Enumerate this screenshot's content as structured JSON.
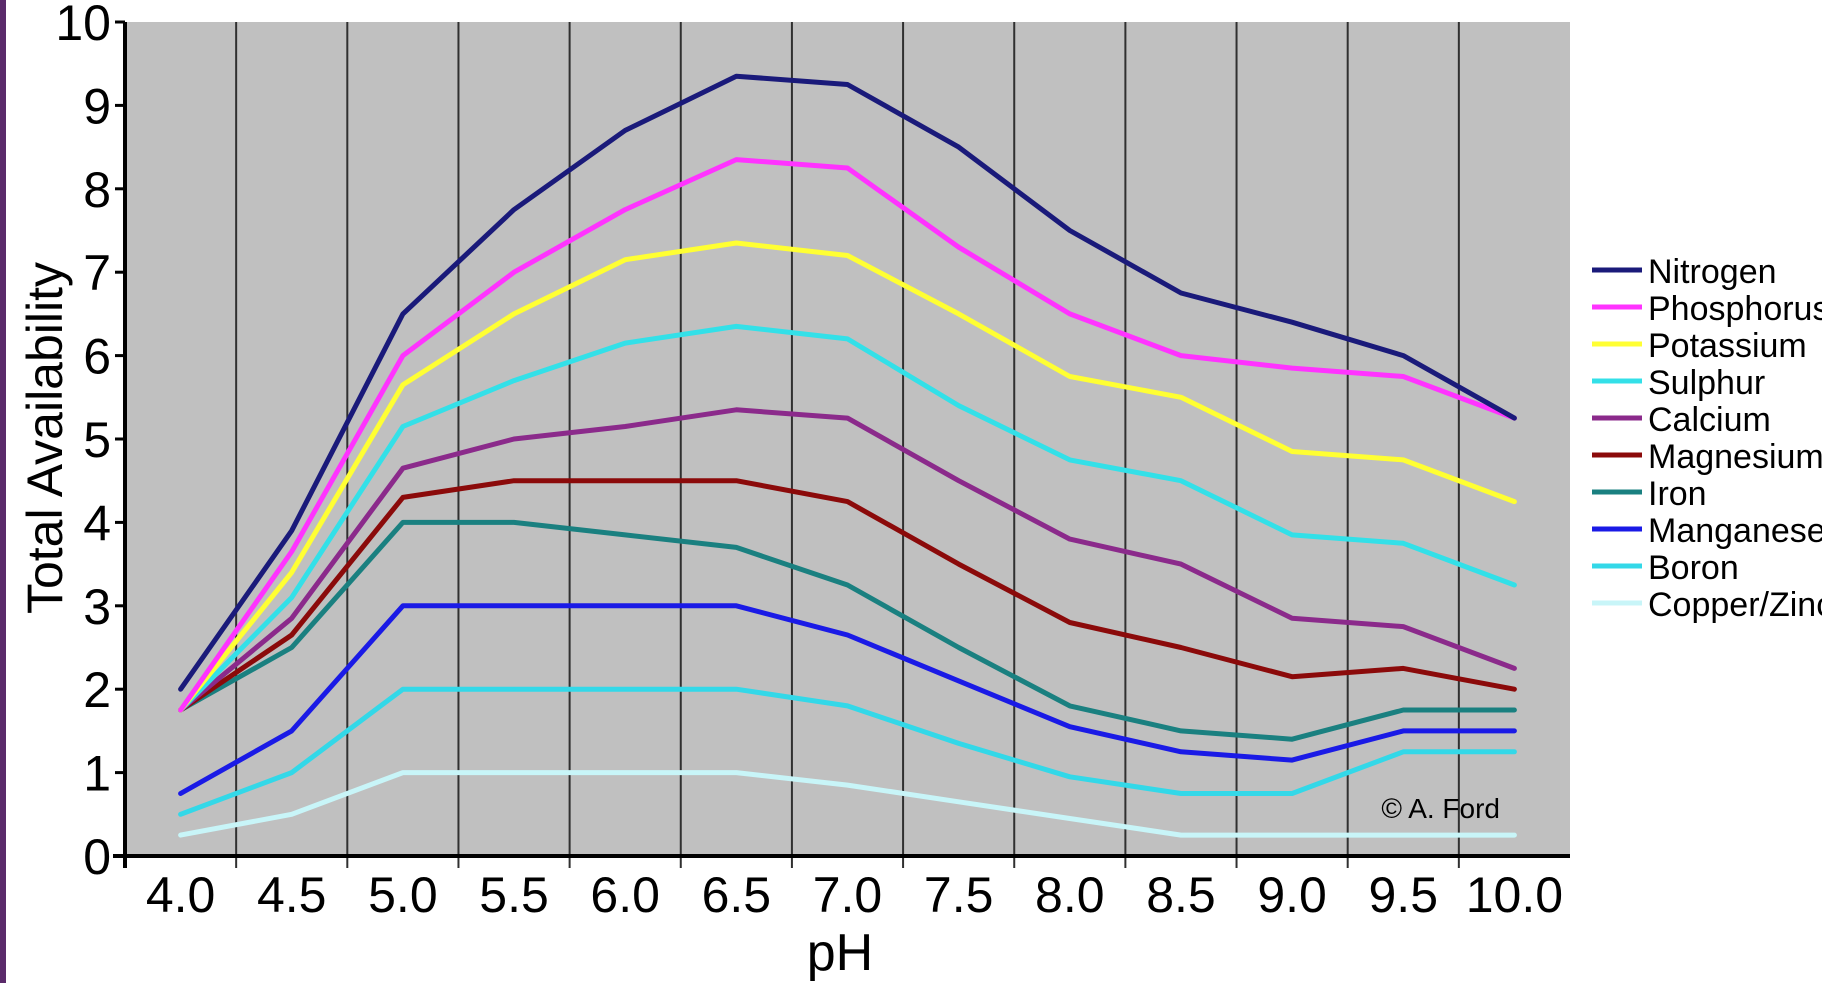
{
  "chart_data": {
    "type": "line",
    "xlabel": "pH",
    "ylabel": "Total Availability",
    "xlim": [
      4.0,
      10.0
    ],
    "ylim": [
      0,
      10
    ],
    "x": [
      4.0,
      4.5,
      5.0,
      5.5,
      6.0,
      6.5,
      7.0,
      7.5,
      8.0,
      8.5,
      9.0,
      9.5,
      10.0
    ],
    "xticks": [
      "4.0",
      "4.5",
      "5.0",
      "5.5",
      "6.0",
      "6.5",
      "7.0",
      "7.5",
      "8.0",
      "8.5",
      "9.0",
      "9.5",
      "10.0"
    ],
    "yticks": [
      "0",
      "1",
      "2",
      "3",
      "4",
      "5",
      "6",
      "7",
      "8",
      "9",
      "10"
    ],
    "grid": "vertical",
    "plot_background": "#c0c0c0",
    "legend_position": "right",
    "annotation": "© A. Ford",
    "series": [
      {
        "name": "Nitrogen",
        "color": "#1a1a7a",
        "values": [
          2.0,
          3.9,
          6.5,
          7.75,
          8.7,
          9.35,
          9.25,
          8.5,
          7.5,
          6.75,
          6.4,
          6.0,
          5.25
        ]
      },
      {
        "name": "Phosphorus",
        "color": "#ff33ff",
        "values": [
          1.75,
          3.65,
          6.0,
          7.0,
          7.75,
          8.35,
          8.25,
          7.3,
          6.5,
          6.0,
          5.85,
          5.75,
          5.25
        ]
      },
      {
        "name": "Potassium",
        "color": "#ffff33",
        "values": [
          1.75,
          3.4,
          5.65,
          6.5,
          7.15,
          7.35,
          7.2,
          6.5,
          5.75,
          5.5,
          4.85,
          4.75,
          4.25
        ]
      },
      {
        "name": "Sulphur",
        "color": "#33e0e8",
        "values": [
          1.75,
          3.1,
          5.15,
          5.7,
          6.15,
          6.35,
          6.2,
          5.4,
          4.75,
          4.5,
          3.85,
          3.75,
          3.25
        ]
      },
      {
        "name": "Calcium",
        "color": "#8b2a8b",
        "values": [
          1.75,
          2.85,
          4.65,
          5.0,
          5.15,
          5.35,
          5.25,
          4.5,
          3.8,
          3.5,
          2.85,
          2.75,
          2.25
        ]
      },
      {
        "name": "Magnesium",
        "color": "#8b0a0a",
        "values": [
          1.75,
          2.65,
          4.3,
          4.5,
          4.5,
          4.5,
          4.25,
          3.5,
          2.8,
          2.5,
          2.15,
          2.25,
          2.0
        ]
      },
      {
        "name": "Iron",
        "color": "#1a8080",
        "values": [
          1.75,
          2.5,
          4.0,
          4.0,
          3.85,
          3.7,
          3.25,
          2.5,
          1.8,
          1.5,
          1.4,
          1.75,
          1.75
        ]
      },
      {
        "name": "Manganese",
        "color": "#1a1ae6",
        "values": [
          0.75,
          1.5,
          3.0,
          3.0,
          3.0,
          3.0,
          2.65,
          2.1,
          1.55,
          1.25,
          1.15,
          1.5,
          1.5
        ]
      },
      {
        "name": "Boron",
        "color": "#33d8e8",
        "values": [
          0.5,
          1.0,
          2.0,
          2.0,
          2.0,
          2.0,
          1.8,
          1.35,
          0.95,
          0.75,
          0.75,
          1.25,
          1.25
        ]
      },
      {
        "name": "Copper/Zinc",
        "color": "#c8f5f8",
        "values": [
          0.25,
          0.5,
          1.0,
          1.0,
          1.0,
          1.0,
          0.85,
          0.65,
          0.45,
          0.25,
          0.25,
          0.25,
          0.25
        ]
      }
    ]
  },
  "colors": {
    "frame_accent": "#5a2a6a",
    "plot_background": "#c0c0c0",
    "gridline": "#303030"
  }
}
